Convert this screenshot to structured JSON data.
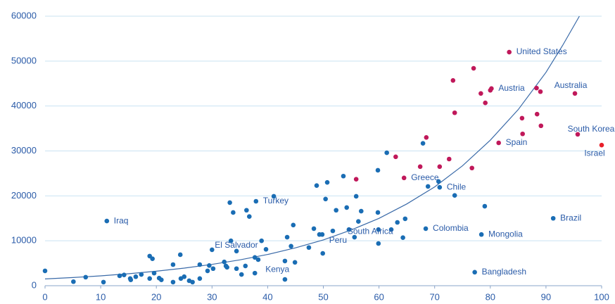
{
  "chart_data": {
    "type": "scatter",
    "xlim": [
      0,
      100
    ],
    "xticks": [
      0,
      10,
      20,
      30,
      40,
      50,
      60,
      70,
      80,
      90,
      100
    ],
    "ylim": [
      0,
      60000
    ],
    "yticks": [
      0,
      10000,
      20000,
      30000,
      40000,
      50000,
      60000
    ],
    "grid": true,
    "series": [
      {
        "color": "#1a6db4",
        "x": [
          0,
          5.1,
          7.3,
          10.5,
          13.4,
          14.2,
          15.3,
          15.4,
          16.3,
          17.3,
          18.8,
          18.8,
          19.3,
          19.6,
          20.5,
          20.9,
          23,
          23,
          24.3,
          24.4,
          25,
          25.9,
          26.5,
          27.8,
          27.8,
          29.2,
          29.5,
          30.2,
          32.2,
          32.5,
          32.7,
          33.4,
          33.2,
          33.8,
          34.4,
          34.4,
          35.3,
          36.2,
          36.7,
          36,
          37.7,
          38.3,
          38.9,
          39.7,
          41.1,
          43.1,
          43.1,
          43.5,
          44.2,
          44.6,
          44.9,
          47.4,
          48.3,
          48.8,
          49.3,
          49.8,
          50.4,
          50.7,
          51.7,
          52.3,
          53.6,
          54.2,
          55.6,
          55.9,
          56.3,
          56.8,
          59.9,
          59.8,
          59.8,
          59.9,
          61.4,
          62.2,
          63.3,
          64.3,
          64.7,
          67.9,
          68.8,
          70.7,
          73.6,
          79
        ],
        "values": [
          3300,
          900,
          1900,
          800,
          2200,
          2400,
          1600,
          1300,
          2000,
          2500,
          1600,
          6600,
          6000,
          2800,
          1700,
          1300,
          4700,
          800,
          6900,
          1600,
          2000,
          1100,
          800,
          4700,
          1600,
          3300,
          4500,
          3800,
          5300,
          4400,
          4100,
          10000,
          18500,
          16300,
          7700,
          3800,
          2500,
          16800,
          15400,
          4400,
          6300,
          5800,
          10000,
          8100,
          19900,
          5500,
          1400,
          10800,
          8800,
          13500,
          5200,
          8500,
          12700,
          22300,
          11400,
          11400,
          19300,
          23000,
          12200,
          16800,
          24400,
          17400,
          10800,
          19900,
          14300,
          16600,
          12500,
          25700,
          16300,
          9400,
          29600,
          12500,
          14100,
          10700,
          14900,
          31700,
          22100,
          23200,
          20100,
          17700
        ]
      },
      {
        "color": "#1a6db4",
        "x": [
          11.1,
          37.9,
          30,
          37.7,
          49.9,
          54.6,
          68.4,
          78.4,
          77.2,
          91.3,
          70.9
        ],
        "values": [
          14400,
          18800,
          8000,
          2800,
          7200,
          12500,
          12700,
          11400,
          3000,
          15000,
          21900
        ],
        "labels": [
          "Iraq",
          "Turkey",
          "El Salvador",
          "Kenya",
          "Peru",
          "South Africa",
          "Colombia",
          "Mongolia",
          "Bangladesh",
          "Brazil",
          "Chile"
        ]
      },
      {
        "color": "#c0185a",
        "x": [
          73.3,
          77,
          78.3,
          79.1,
          80,
          73.6,
          68.5,
          85.7,
          88.4,
          88.3,
          89,
          85.8,
          89.1,
          72.6,
          70.9,
          67.4,
          63,
          55.9,
          76.7
        ],
        "values": [
          45700,
          48400,
          42800,
          40700,
          43500,
          38500,
          33000,
          37300,
          38200,
          44000,
          43200,
          33800,
          35600,
          28200,
          26500,
          26500,
          28700,
          23700,
          26200
        ]
      },
      {
        "color": "#c0185a",
        "x": [
          64.5,
          81.5,
          80.2,
          83.4,
          95.2,
          95.7
        ],
        "values": [
          24000,
          31800,
          43900,
          52000,
          42800,
          33700
        ],
        "labels": [
          "Greece",
          "Spain",
          "Austria",
          "United States",
          "Australia",
          "South Korea"
        ]
      },
      {
        "color": "#e8202a",
        "x": [
          100
        ],
        "values": [
          31300
        ],
        "labels": [
          "Israel"
        ]
      }
    ],
    "trendline": {
      "color": "#3a6aa8",
      "x": [
        0,
        5,
        10,
        15,
        20,
        25,
        30,
        35,
        40,
        45,
        50,
        55,
        60,
        65,
        70,
        75,
        80,
        85,
        90,
        93,
        96
      ],
      "values": [
        1500,
        1820,
        2200,
        2670,
        3230,
        3920,
        4740,
        5750,
        6960,
        8430,
        10200,
        12400,
        15000,
        18200,
        22000,
        26700,
        32400,
        39200,
        47500,
        53500,
        60000
      ]
    }
  }
}
